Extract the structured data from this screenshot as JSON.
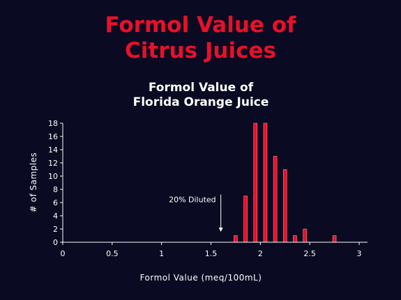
{
  "slide": {
    "title_line1": "Formol Value of",
    "title_line2": "Citrus Juices"
  },
  "colors": {
    "background": "#0a0a22",
    "title": "#e8102a",
    "bar": "#e8102a",
    "axis": "#ffffff"
  },
  "chart_data": {
    "type": "bar",
    "title_lines": [
      "Formol Value of",
      "Florida Orange Juice"
    ],
    "xlabel": "Formol Value (meq/100mL)",
    "ylabel": "# of Samples",
    "xlim": [
      0,
      3
    ],
    "ylim": [
      0,
      18
    ],
    "x_ticks": [
      "0",
      "0.5",
      "1",
      "1.5",
      "2",
      "2.5",
      "3"
    ],
    "y_ticks": [
      "0",
      "2",
      "4",
      "6",
      "8",
      "10",
      "12",
      "14",
      "16",
      "18"
    ],
    "grid": false,
    "bin_width": 0.05,
    "series": [
      {
        "x": [
          1.75,
          1.85,
          1.95,
          2.05,
          2.15,
          2.25,
          2.35,
          2.45,
          2.75
        ],
        "values": [
          1,
          7,
          18,
          18,
          13,
          11,
          1,
          2,
          1
        ]
      }
    ],
    "annotations": [
      {
        "text": "20% Diluted",
        "x": 1.6,
        "y": 7,
        "arrow_to_y": 2
      }
    ]
  }
}
